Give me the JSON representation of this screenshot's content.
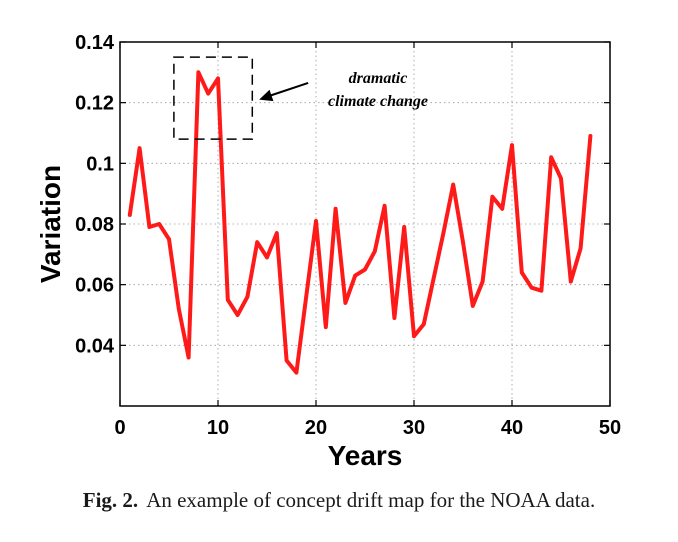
{
  "chart_data": {
    "type": "line",
    "xlabel": "Years",
    "ylabel": "Variation",
    "xlim": [
      0,
      50
    ],
    "ylim": [
      0.02,
      0.14
    ],
    "xticks": [
      "0",
      "10",
      "20",
      "30",
      "40",
      "50"
    ],
    "yticks": [
      "0.04",
      "0.06",
      "0.08",
      "0.1",
      "0.12",
      "0.14"
    ],
    "grid": true,
    "series": [
      {
        "color": "#ff1a1a",
        "x": [
          1,
          2,
          3,
          4,
          5,
          6,
          7,
          8,
          9,
          10,
          11,
          12,
          13,
          14,
          15,
          16,
          17,
          18,
          19,
          20,
          21,
          22,
          23,
          24,
          25,
          26,
          27,
          28,
          29,
          30,
          31,
          32,
          33,
          34,
          35,
          36,
          37,
          38,
          39,
          40,
          41,
          42,
          43,
          44,
          45,
          46,
          47,
          48
        ],
        "y": [
          0.083,
          0.105,
          0.079,
          0.08,
          0.075,
          0.052,
          0.036,
          0.13,
          0.123,
          0.128,
          0.055,
          0.05,
          0.056,
          0.074,
          0.069,
          0.077,
          0.035,
          0.031,
          0.056,
          0.081,
          0.046,
          0.085,
          0.054,
          0.063,
          0.065,
          0.071,
          0.086,
          0.049,
          0.079,
          0.043,
          0.047,
          0.062,
          0.077,
          0.093,
          0.074,
          0.053,
          0.061,
          0.089,
          0.085,
          0.106,
          0.064,
          0.059,
          0.058,
          0.102,
          0.095,
          0.061,
          0.072,
          0.109
        ]
      }
    ],
    "annotation": {
      "text_line1": "dramatic",
      "text_line2": "climate change",
      "box_x": [
        5.5,
        13.5
      ],
      "box_y": [
        0.108,
        0.135
      ],
      "arrow_target": [
        14.2,
        0.121
      ],
      "arrow_tail": [
        19.2,
        0.1265
      ]
    }
  },
  "caption": {
    "label": "Fig. 2.",
    "text": "An example of concept drift map for the NOAA data."
  }
}
